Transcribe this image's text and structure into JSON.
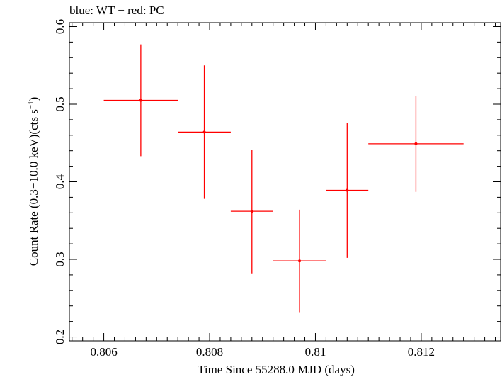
{
  "chart_data": {
    "type": "scatter",
    "title": "blue: WT − red: PC",
    "xlabel": "Time Since 55288.0 MJD (days)",
    "ylabel_main": "Count Rate (0.3−10.0 keV)(cts s",
    "ylabel_sup": "−1",
    "ylabel_end": ")",
    "xlim": [
      0.80535,
      0.8135
    ],
    "ylim": [
      0.195,
      0.605
    ],
    "x_ticks": [
      0.806,
      0.808,
      0.81,
      0.812
    ],
    "x_tick_labels": [
      "0.806",
      "0.808",
      "0.81",
      "0.812"
    ],
    "y_ticks": [
      0.2,
      0.3,
      0.4,
      0.5,
      0.6
    ],
    "y_tick_labels": [
      "0.2",
      "0.3",
      "0.4",
      "0.5",
      "0.6"
    ],
    "series": [
      {
        "color": "#ff0000",
        "points": [
          {
            "x": 0.8067,
            "xlo": 0.806,
            "xhi": 0.8074,
            "y": 0.505,
            "ylo": 0.433,
            "yhi": 0.577
          },
          {
            "x": 0.8079,
            "xlo": 0.8074,
            "xhi": 0.8084,
            "y": 0.464,
            "ylo": 0.378,
            "yhi": 0.55
          },
          {
            "x": 0.8088,
            "xlo": 0.8084,
            "xhi": 0.8092,
            "y": 0.362,
            "ylo": 0.282,
            "yhi": 0.441
          },
          {
            "x": 0.8097,
            "xlo": 0.8092,
            "xhi": 0.8102,
            "y": 0.298,
            "ylo": 0.232,
            "yhi": 0.364
          },
          {
            "x": 0.8106,
            "xlo": 0.8102,
            "xhi": 0.811,
            "y": 0.389,
            "ylo": 0.302,
            "yhi": 0.476
          },
          {
            "x": 0.8119,
            "xlo": 0.811,
            "xhi": 0.8128,
            "y": 0.449,
            "ylo": 0.387,
            "yhi": 0.511
          }
        ]
      }
    ]
  }
}
